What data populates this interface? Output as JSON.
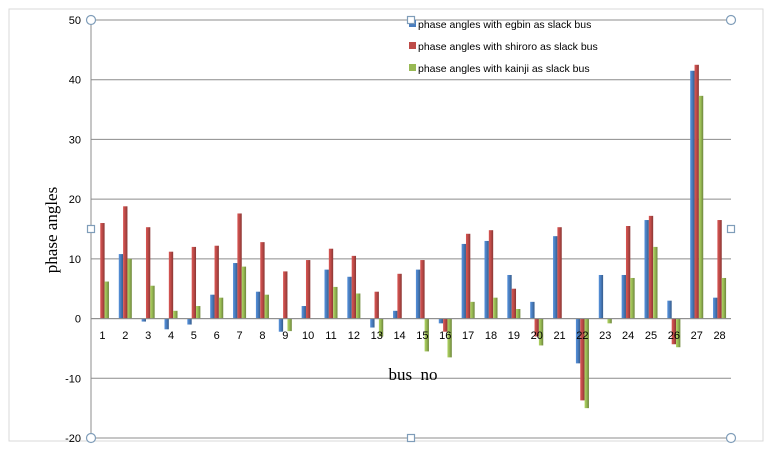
{
  "chart_data": {
    "type": "bar",
    "title": "",
    "xlabel": "bus  no",
    "ylabel": "phase angles",
    "categories": [
      "1",
      "2",
      "3",
      "4",
      "5",
      "6",
      "7",
      "8",
      "9",
      "10",
      "11",
      "12",
      "13",
      "14",
      "15",
      "16",
      "17",
      "18",
      "19",
      "20",
      "21",
      "22",
      "23",
      "24",
      "25",
      "26",
      "27",
      "28"
    ],
    "ylim": [
      -20,
      50
    ],
    "yticks": [
      "50",
      "40",
      "30",
      "20",
      "10",
      "0",
      "-10",
      "-20"
    ],
    "grid": true,
    "legend_position": "top-right",
    "series": [
      {
        "name": "phase angles with egbin as slack bus",
        "color": "#4a7ebf",
        "values": [
          0,
          10.8,
          -0.5,
          -1.8,
          -1.0,
          4.0,
          9.3,
          4.5,
          -2.2,
          2.1,
          8.2,
          7.0,
          -1.5,
          1.3,
          8.2,
          -0.8,
          12.5,
          13.0,
          7.3,
          2.8,
          13.8,
          -7.5,
          7.3,
          7.3,
          16.5,
          3.0,
          41.5,
          3.5
        ]
      },
      {
        "name": "phase angles with shiroro as slack bus",
        "color": "#be4b48",
        "values": [
          16.0,
          18.8,
          15.3,
          11.2,
          12.0,
          12.2,
          17.6,
          12.8,
          7.9,
          9.8,
          11.7,
          10.5,
          4.5,
          7.5,
          9.8,
          -2.2,
          14.2,
          14.8,
          5.0,
          -3.0,
          15.3,
          -13.7,
          0,
          15.5,
          17.2,
          -4.3,
          42.5,
          16.5
        ]
      },
      {
        "name": "phase angles with kainji as slack bus",
        "color": "#98b954",
        "values": [
          6.2,
          10.0,
          5.5,
          1.3,
          2.1,
          3.5,
          8.7,
          4.0,
          -2.1,
          0,
          5.3,
          4.2,
          -3.0,
          0,
          -5.5,
          -6.5,
          2.8,
          3.5,
          1.6,
          -4.5,
          0,
          -15.0,
          -0.8,
          6.8,
          12.0,
          -4.8,
          37.3,
          6.8
        ]
      }
    ]
  }
}
